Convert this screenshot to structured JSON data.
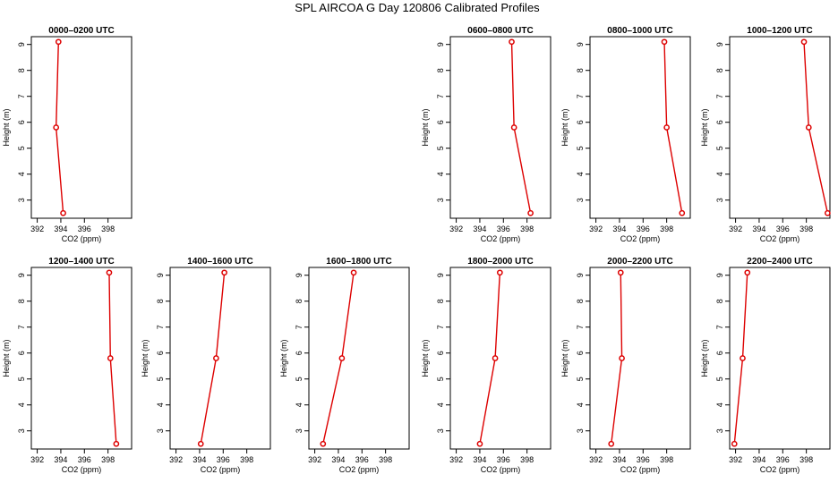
{
  "title": "SPL AIRCOA G  Day 120806  Calibrated Profiles",
  "colors": {
    "series": "#dd0000",
    "axis": "#000000"
  },
  "chart_data": [
    {
      "type": "line",
      "title": "0000–0200 UTC",
      "xlabel": "CO2 (ppm)",
      "ylabel": "Height (m)",
      "xlim": [
        391.5,
        400
      ],
      "ylim": [
        2.3,
        9.3
      ],
      "xticks": [
        "392",
        "394",
        "396",
        "398"
      ],
      "yticks": [
        "3",
        "4",
        "5",
        "6",
        "7",
        "8",
        "9"
      ],
      "series": [
        {
          "x": [
            393.8,
            393.6,
            394.2
          ],
          "y": [
            9.1,
            5.8,
            2.5
          ]
        }
      ]
    },
    null,
    null,
    {
      "type": "line",
      "title": "0600–0800 UTC",
      "xlabel": "CO2 (ppm)",
      "ylabel": "Height (m)",
      "xlim": [
        391.5,
        400
      ],
      "ylim": [
        2.3,
        9.3
      ],
      "xticks": [
        "392",
        "394",
        "396",
        "398"
      ],
      "yticks": [
        "3",
        "4",
        "5",
        "6",
        "7",
        "8",
        "9"
      ],
      "series": [
        {
          "x": [
            396.7,
            396.9,
            398.3
          ],
          "y": [
            9.1,
            5.8,
            2.5
          ]
        }
      ]
    },
    {
      "type": "line",
      "title": "0800–1000 UTC",
      "xlabel": "CO2 (ppm)",
      "ylabel": "Height (m)",
      "xlim": [
        391.5,
        400
      ],
      "ylim": [
        2.3,
        9.3
      ],
      "xticks": [
        "392",
        "394",
        "396",
        "398"
      ],
      "yticks": [
        "3",
        "4",
        "5",
        "6",
        "7",
        "8",
        "9"
      ],
      "series": [
        {
          "x": [
            397.8,
            398.0,
            399.3
          ],
          "y": [
            9.1,
            5.8,
            2.5
          ]
        }
      ]
    },
    {
      "type": "line",
      "title": "1000–1200 UTC",
      "xlabel": "CO2 (ppm)",
      "ylabel": "Height (m)",
      "xlim": [
        391.5,
        400
      ],
      "ylim": [
        2.3,
        9.3
      ],
      "xticks": [
        "392",
        "394",
        "396",
        "398"
      ],
      "yticks": [
        "3",
        "4",
        "5",
        "6",
        "7",
        "8",
        "9"
      ],
      "series": [
        {
          "x": [
            397.8,
            398.2,
            399.8
          ],
          "y": [
            9.1,
            5.8,
            2.5
          ]
        }
      ]
    },
    {
      "type": "line",
      "title": "1200–1400 UTC",
      "xlabel": "CO2 (ppm)",
      "ylabel": "Height (m)",
      "xlim": [
        391.5,
        400
      ],
      "ylim": [
        2.3,
        9.3
      ],
      "xticks": [
        "392",
        "394",
        "396",
        "398"
      ],
      "yticks": [
        "3",
        "4",
        "5",
        "6",
        "7",
        "8",
        "9"
      ],
      "series": [
        {
          "x": [
            398.1,
            398.2,
            398.7
          ],
          "y": [
            9.1,
            5.8,
            2.5
          ]
        }
      ]
    },
    {
      "type": "line",
      "title": "1400–1600 UTC",
      "xlabel": "CO2 (ppm)",
      "ylabel": "Height (m)",
      "xlim": [
        391.5,
        400
      ],
      "ylim": [
        2.3,
        9.3
      ],
      "xticks": [
        "392",
        "394",
        "396",
        "398"
      ],
      "yticks": [
        "3",
        "4",
        "5",
        "6",
        "7",
        "8",
        "9"
      ],
      "series": [
        {
          "x": [
            396.1,
            395.4,
            394.1
          ],
          "y": [
            9.1,
            5.8,
            2.5
          ]
        }
      ]
    },
    {
      "type": "line",
      "title": "1600–1800 UTC",
      "xlabel": "CO2 (ppm)",
      "ylabel": "Height (m)",
      "xlim": [
        391.5,
        400
      ],
      "ylim": [
        2.3,
        9.3
      ],
      "xticks": [
        "392",
        "394",
        "396",
        "398"
      ],
      "yticks": [
        "3",
        "4",
        "5",
        "6",
        "7",
        "8",
        "9"
      ],
      "series": [
        {
          "x": [
            395.3,
            394.3,
            392.7
          ],
          "y": [
            9.1,
            5.8,
            2.5
          ]
        }
      ]
    },
    {
      "type": "line",
      "title": "1800–2000 UTC",
      "xlabel": "CO2 (ppm)",
      "ylabel": "Height (m)",
      "xlim": [
        391.5,
        400
      ],
      "ylim": [
        2.3,
        9.3
      ],
      "xticks": [
        "392",
        "394",
        "396",
        "398"
      ],
      "yticks": [
        "3",
        "4",
        "5",
        "6",
        "7",
        "8",
        "9"
      ],
      "series": [
        {
          "x": [
            395.7,
            395.3,
            394.0
          ],
          "y": [
            9.1,
            5.8,
            2.5
          ]
        }
      ]
    },
    {
      "type": "line",
      "title": "2000–2200 UTC",
      "xlabel": "CO2 (ppm)",
      "ylabel": "Height (m)",
      "xlim": [
        391.5,
        400
      ],
      "ylim": [
        2.3,
        9.3
      ],
      "xticks": [
        "392",
        "394",
        "396",
        "398"
      ],
      "yticks": [
        "3",
        "4",
        "5",
        "6",
        "7",
        "8",
        "9"
      ],
      "series": [
        {
          "x": [
            394.1,
            394.2,
            393.3
          ],
          "y": [
            9.1,
            5.8,
            2.5
          ]
        }
      ]
    },
    {
      "type": "line",
      "title": "2200–2400 UTC",
      "xlabel": "CO2 (ppm)",
      "ylabel": "Height (m)",
      "xlim": [
        391.5,
        400
      ],
      "ylim": [
        2.3,
        9.3
      ],
      "xticks": [
        "392",
        "394",
        "396",
        "398"
      ],
      "yticks": [
        "3",
        "4",
        "5",
        "6",
        "7",
        "8",
        "9"
      ],
      "series": [
        {
          "x": [
            393.0,
            392.6,
            391.9
          ],
          "y": [
            9.1,
            5.8,
            2.5
          ]
        }
      ]
    }
  ]
}
